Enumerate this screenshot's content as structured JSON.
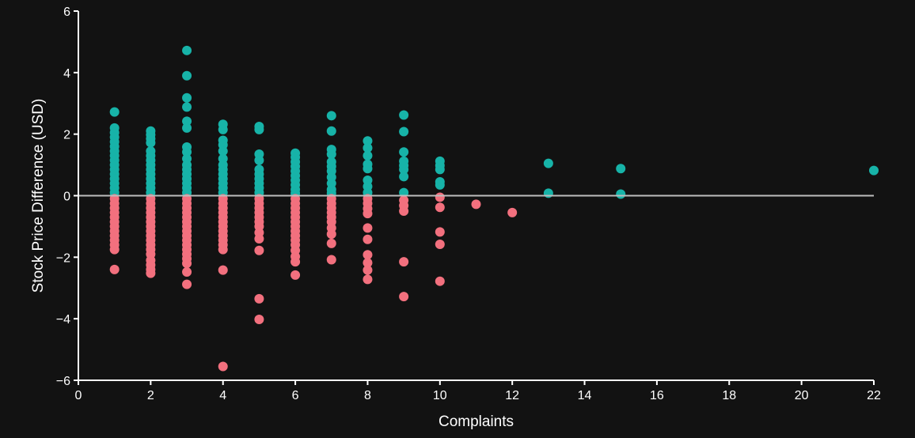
{
  "chart_data": {
    "type": "scatter",
    "xlabel": "Complaints",
    "ylabel": "Stock Price Difference (USD)",
    "xlim": [
      0,
      22
    ],
    "ylim": [
      -6,
      6
    ],
    "xticks": [
      0,
      2,
      4,
      6,
      8,
      10,
      12,
      14,
      16,
      18,
      20,
      22
    ],
    "yticks": [
      -6,
      -4,
      -2,
      0,
      2,
      4,
      6
    ],
    "grid": false,
    "reference_line_y": 0,
    "colors": {
      "positive": "#17b3a8",
      "negative": "#f2707e",
      "axis": "#ffffff",
      "zero_line": "#bdbdbd",
      "background": "#121212"
    },
    "series": [
      {
        "color_key": "positive",
        "points": [
          [
            1,
            2.72
          ],
          [
            1,
            2.2
          ],
          [
            1,
            2.05
          ],
          [
            1,
            1.9
          ],
          [
            1,
            1.75
          ],
          [
            1,
            1.6
          ],
          [
            1,
            1.45
          ],
          [
            1,
            1.3
          ],
          [
            1,
            1.15
          ],
          [
            1,
            1.0
          ],
          [
            1,
            0.85
          ],
          [
            1,
            0.7
          ],
          [
            1,
            0.55
          ],
          [
            1,
            0.4
          ],
          [
            1,
            0.25
          ],
          [
            1,
            0.1
          ],
          [
            2,
            2.1
          ],
          [
            2,
            1.98
          ],
          [
            2,
            1.85
          ],
          [
            2,
            1.72
          ],
          [
            2,
            1.45
          ],
          [
            2,
            1.3
          ],
          [
            2,
            1.15
          ],
          [
            2,
            1.0
          ],
          [
            2,
            0.85
          ],
          [
            2,
            0.7
          ],
          [
            2,
            0.55
          ],
          [
            2,
            0.4
          ],
          [
            2,
            0.25
          ],
          [
            2,
            0.1
          ],
          [
            3,
            4.72
          ],
          [
            3,
            3.9
          ],
          [
            3,
            3.18
          ],
          [
            3,
            2.88
          ],
          [
            3,
            2.42
          ],
          [
            3,
            2.2
          ],
          [
            3,
            1.58
          ],
          [
            3,
            1.42
          ],
          [
            3,
            1.2
          ],
          [
            3,
            1.0
          ],
          [
            3,
            0.85
          ],
          [
            3,
            0.7
          ],
          [
            3,
            0.55
          ],
          [
            3,
            0.4
          ],
          [
            3,
            0.25
          ],
          [
            3,
            0.1
          ],
          [
            4,
            2.32
          ],
          [
            4,
            2.15
          ],
          [
            4,
            1.8
          ],
          [
            4,
            1.65
          ],
          [
            4,
            1.45
          ],
          [
            4,
            1.2
          ],
          [
            4,
            1.0
          ],
          [
            4,
            0.85
          ],
          [
            4,
            0.7
          ],
          [
            4,
            0.55
          ],
          [
            4,
            0.4
          ],
          [
            4,
            0.25
          ],
          [
            4,
            0.1
          ],
          [
            5,
            2.25
          ],
          [
            5,
            2.15
          ],
          [
            5,
            1.35
          ],
          [
            5,
            1.15
          ],
          [
            5,
            0.85
          ],
          [
            5,
            0.7
          ],
          [
            5,
            0.55
          ],
          [
            5,
            0.4
          ],
          [
            5,
            0.25
          ],
          [
            5,
            0.1
          ],
          [
            6,
            1.38
          ],
          [
            6,
            1.25
          ],
          [
            6,
            1.1
          ],
          [
            6,
            0.95
          ],
          [
            6,
            0.8
          ],
          [
            6,
            0.65
          ],
          [
            6,
            0.5
          ],
          [
            6,
            0.35
          ],
          [
            6,
            0.2
          ],
          [
            6,
            0.08
          ],
          [
            7,
            2.6
          ],
          [
            7,
            2.1
          ],
          [
            7,
            1.5
          ],
          [
            7,
            1.35
          ],
          [
            7,
            1.1
          ],
          [
            7,
            0.95
          ],
          [
            7,
            0.8
          ],
          [
            7,
            0.6
          ],
          [
            7,
            0.4
          ],
          [
            7,
            0.2
          ],
          [
            7,
            0.08
          ],
          [
            8,
            1.78
          ],
          [
            8,
            1.55
          ],
          [
            8,
            1.3
          ],
          [
            8,
            1.02
          ],
          [
            8,
            0.88
          ],
          [
            8,
            0.5
          ],
          [
            8,
            0.3
          ],
          [
            8,
            0.1
          ],
          [
            9,
            2.62
          ],
          [
            9,
            2.08
          ],
          [
            9,
            1.42
          ],
          [
            9,
            1.12
          ],
          [
            9,
            0.98
          ],
          [
            9,
            0.85
          ],
          [
            9,
            0.62
          ],
          [
            9,
            0.1
          ],
          [
            10,
            1.12
          ],
          [
            10,
            0.98
          ],
          [
            10,
            0.85
          ],
          [
            10,
            0.45
          ],
          [
            10,
            0.35
          ],
          [
            13,
            1.05
          ],
          [
            13,
            0.08
          ],
          [
            15,
            0.88
          ],
          [
            15,
            0.05
          ],
          [
            22,
            0.82
          ]
        ]
      },
      {
        "color_key": "negative",
        "points": [
          [
            1,
            -0.1
          ],
          [
            1,
            -0.25
          ],
          [
            1,
            -0.4
          ],
          [
            1,
            -0.55
          ],
          [
            1,
            -0.7
          ],
          [
            1,
            -0.85
          ],
          [
            1,
            -1.0
          ],
          [
            1,
            -1.15
          ],
          [
            1,
            -1.3
          ],
          [
            1,
            -1.45
          ],
          [
            1,
            -1.6
          ],
          [
            1,
            -1.75
          ],
          [
            1,
            -2.4
          ],
          [
            2,
            -0.1
          ],
          [
            2,
            -0.25
          ],
          [
            2,
            -0.4
          ],
          [
            2,
            -0.55
          ],
          [
            2,
            -0.7
          ],
          [
            2,
            -0.85
          ],
          [
            2,
            -1.0
          ],
          [
            2,
            -1.15
          ],
          [
            2,
            -1.3
          ],
          [
            2,
            -1.45
          ],
          [
            2,
            -1.6
          ],
          [
            2,
            -1.75
          ],
          [
            2,
            -1.9
          ],
          [
            2,
            -2.1
          ],
          [
            2,
            -2.25
          ],
          [
            2,
            -2.4
          ],
          [
            2,
            -2.52
          ],
          [
            3,
            -0.1
          ],
          [
            3,
            -0.25
          ],
          [
            3,
            -0.4
          ],
          [
            3,
            -0.55
          ],
          [
            3,
            -0.7
          ],
          [
            3,
            -0.85
          ],
          [
            3,
            -1.0
          ],
          [
            3,
            -1.15
          ],
          [
            3,
            -1.3
          ],
          [
            3,
            -1.45
          ],
          [
            3,
            -1.6
          ],
          [
            3,
            -1.75
          ],
          [
            3,
            -1.9
          ],
          [
            3,
            -2.05
          ],
          [
            3,
            -2.2
          ],
          [
            3,
            -2.48
          ],
          [
            3,
            -2.88
          ],
          [
            4,
            -0.1
          ],
          [
            4,
            -0.25
          ],
          [
            4,
            -0.4
          ],
          [
            4,
            -0.55
          ],
          [
            4,
            -0.7
          ],
          [
            4,
            -0.85
          ],
          [
            4,
            -1.0
          ],
          [
            4,
            -1.15
          ],
          [
            4,
            -1.3
          ],
          [
            4,
            -1.45
          ],
          [
            4,
            -1.6
          ],
          [
            4,
            -1.75
          ],
          [
            4,
            -2.42
          ],
          [
            4,
            -5.55
          ],
          [
            5,
            -0.1
          ],
          [
            5,
            -0.25
          ],
          [
            5,
            -0.4
          ],
          [
            5,
            -0.55
          ],
          [
            5,
            -0.7
          ],
          [
            5,
            -0.85
          ],
          [
            5,
            -1.0
          ],
          [
            5,
            -1.2
          ],
          [
            5,
            -1.4
          ],
          [
            5,
            -1.78
          ],
          [
            5,
            -3.35
          ],
          [
            5,
            -4.02
          ],
          [
            6,
            -0.1
          ],
          [
            6,
            -0.25
          ],
          [
            6,
            -0.4
          ],
          [
            6,
            -0.55
          ],
          [
            6,
            -0.7
          ],
          [
            6,
            -0.85
          ],
          [
            6,
            -1.0
          ],
          [
            6,
            -1.15
          ],
          [
            6,
            -1.3
          ],
          [
            6,
            -1.45
          ],
          [
            6,
            -1.6
          ],
          [
            6,
            -1.78
          ],
          [
            6,
            -1.98
          ],
          [
            6,
            -2.15
          ],
          [
            6,
            -2.58
          ],
          [
            7,
            -0.1
          ],
          [
            7,
            -0.25
          ],
          [
            7,
            -0.4
          ],
          [
            7,
            -0.55
          ],
          [
            7,
            -0.7
          ],
          [
            7,
            -0.85
          ],
          [
            7,
            -1.05
          ],
          [
            7,
            -1.25
          ],
          [
            7,
            -1.55
          ],
          [
            7,
            -2.08
          ],
          [
            8,
            -0.1
          ],
          [
            8,
            -0.25
          ],
          [
            8,
            -0.42
          ],
          [
            8,
            -0.58
          ],
          [
            8,
            -1.05
          ],
          [
            8,
            -1.42
          ],
          [
            8,
            -1.92
          ],
          [
            8,
            -2.18
          ],
          [
            8,
            -2.42
          ],
          [
            8,
            -2.72
          ],
          [
            9,
            -0.15
          ],
          [
            9,
            -0.32
          ],
          [
            9,
            -0.5
          ],
          [
            9,
            -2.15
          ],
          [
            9,
            -3.28
          ],
          [
            10,
            -0.05
          ],
          [
            10,
            -0.38
          ],
          [
            10,
            -1.18
          ],
          [
            10,
            -1.58
          ],
          [
            10,
            -2.78
          ],
          [
            11,
            -0.28
          ],
          [
            12,
            -0.55
          ]
        ]
      }
    ]
  }
}
